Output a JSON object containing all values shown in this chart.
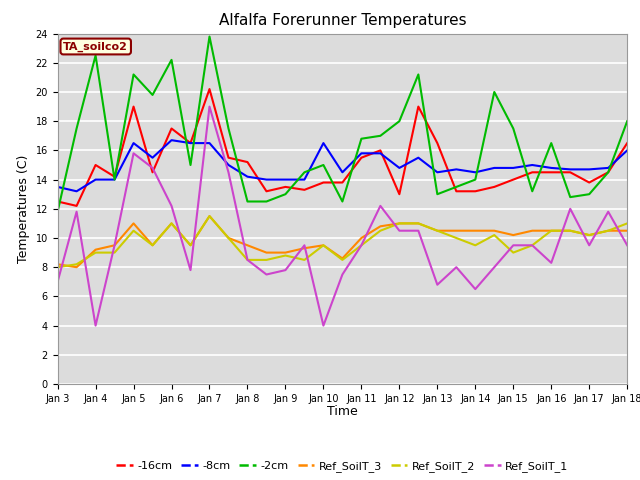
{
  "title": "Alfalfa Forerunner Temperatures",
  "xlabel": "Time",
  "ylabel": "Temperatures (C)",
  "annotation": "TA_soilco2",
  "xlim": [
    0,
    15
  ],
  "ylim": [
    0,
    24
  ],
  "yticks": [
    0,
    2,
    4,
    6,
    8,
    10,
    12,
    14,
    16,
    18,
    20,
    22,
    24
  ],
  "xtick_labels": [
    "Jan 3",
    "Jan 4",
    "Jan 5",
    "Jan 6",
    "Jan 7",
    "Jan 8",
    "Jan 9",
    "Jan 10",
    "Jan 11",
    "Jan 12",
    "Jan 13",
    "Jan 14",
    "Jan 15",
    "Jan 16",
    "Jan 17",
    "Jan 18"
  ],
  "plot_bg_color": "#dcdcdc",
  "series": {
    "-16cm": {
      "color": "#ff0000",
      "lw": 1.5,
      "x": [
        0,
        0.5,
        1.0,
        1.5,
        2.0,
        2.5,
        3.0,
        3.5,
        4.0,
        4.5,
        5.0,
        5.5,
        6.0,
        6.5,
        7.0,
        7.5,
        8.0,
        8.5,
        9.0,
        9.5,
        10.0,
        10.5,
        11.0,
        11.5,
        12.0,
        12.5,
        13.0,
        13.5,
        14.0,
        14.5,
        15.0
      ],
      "y": [
        12.5,
        12.2,
        15.0,
        14.2,
        19.0,
        14.5,
        17.5,
        16.5,
        20.2,
        15.5,
        15.2,
        13.2,
        13.5,
        13.3,
        13.8,
        13.8,
        15.5,
        16.0,
        13.0,
        19.0,
        16.5,
        13.2,
        13.2,
        13.5,
        14.0,
        14.5,
        14.5,
        14.5,
        13.8,
        14.5,
        16.5
      ]
    },
    "-8cm": {
      "color": "#0000ff",
      "lw": 1.5,
      "x": [
        0,
        0.5,
        1.0,
        1.5,
        2.0,
        2.5,
        3.0,
        3.5,
        4.0,
        4.5,
        5.0,
        5.5,
        6.0,
        6.5,
        7.0,
        7.5,
        8.0,
        8.5,
        9.0,
        9.5,
        10.0,
        10.5,
        11.0,
        11.5,
        12.0,
        12.5,
        13.0,
        13.5,
        14.0,
        14.5,
        15.0
      ],
      "y": [
        13.5,
        13.2,
        14.0,
        14.0,
        16.5,
        15.5,
        16.7,
        16.5,
        16.5,
        15.0,
        14.2,
        14.0,
        14.0,
        14.0,
        16.5,
        14.5,
        15.8,
        15.8,
        14.8,
        15.5,
        14.5,
        14.7,
        14.5,
        14.8,
        14.8,
        15.0,
        14.8,
        14.7,
        14.7,
        14.8,
        16.0
      ]
    },
    "-2cm": {
      "color": "#00bb00",
      "lw": 1.5,
      "x": [
        0,
        0.5,
        1.0,
        1.5,
        2.0,
        2.5,
        3.0,
        3.5,
        4.0,
        4.5,
        5.0,
        5.5,
        6.0,
        6.5,
        7.0,
        7.5,
        8.0,
        8.5,
        9.0,
        9.5,
        10.0,
        10.5,
        11.0,
        11.5,
        12.0,
        12.5,
        13.0,
        13.5,
        14.0,
        14.5,
        15.0
      ],
      "y": [
        11.8,
        17.5,
        22.5,
        14.0,
        21.2,
        19.8,
        22.2,
        15.0,
        23.8,
        17.5,
        12.5,
        12.5,
        13.0,
        14.5,
        15.0,
        12.5,
        16.8,
        17.0,
        18.0,
        21.2,
        13.0,
        13.5,
        14.0,
        20.0,
        17.5,
        13.2,
        16.5,
        12.8,
        13.0,
        14.5,
        18.0
      ]
    },
    "Ref_SoilT_3": {
      "color": "#ff8800",
      "lw": 1.5,
      "x": [
        0,
        0.5,
        1.0,
        1.5,
        2.0,
        2.5,
        3.0,
        3.5,
        4.0,
        4.5,
        5.0,
        5.5,
        6.0,
        6.5,
        7.0,
        7.5,
        8.0,
        8.5,
        9.0,
        9.5,
        10.0,
        10.5,
        11.0,
        11.5,
        12.0,
        12.5,
        13.0,
        13.5,
        14.0,
        14.5,
        15.0
      ],
      "y": [
        8.2,
        8.0,
        9.2,
        9.5,
        11.0,
        9.5,
        11.0,
        9.5,
        11.5,
        10.0,
        9.5,
        9.0,
        9.0,
        9.3,
        9.5,
        8.6,
        10.0,
        10.8,
        11.0,
        11.0,
        10.5,
        10.5,
        10.5,
        10.5,
        10.2,
        10.5,
        10.5,
        10.5,
        10.2,
        10.5,
        10.5
      ]
    },
    "Ref_SoilT_2": {
      "color": "#cccc00",
      "lw": 1.5,
      "x": [
        0,
        0.5,
        1.0,
        1.5,
        2.0,
        2.5,
        3.0,
        3.5,
        4.0,
        4.5,
        5.0,
        5.5,
        6.0,
        6.5,
        7.0,
        7.5,
        8.0,
        8.5,
        9.0,
        9.5,
        10.0,
        10.5,
        11.0,
        11.5,
        12.0,
        12.5,
        13.0,
        13.5,
        14.0,
        14.5,
        15.0
      ],
      "y": [
        8.0,
        8.2,
        9.0,
        9.0,
        10.5,
        9.5,
        11.0,
        9.5,
        11.5,
        10.0,
        8.5,
        8.5,
        8.8,
        8.5,
        9.5,
        8.5,
        9.5,
        10.5,
        11.0,
        11.0,
        10.5,
        10.0,
        9.5,
        10.2,
        9.0,
        9.5,
        10.5,
        10.5,
        10.2,
        10.5,
        11.0
      ]
    },
    "Ref_SoilT_1": {
      "color": "#cc44cc",
      "lw": 1.5,
      "x": [
        0,
        0.5,
        1.0,
        1.5,
        2.0,
        2.5,
        3.0,
        3.5,
        4.0,
        4.5,
        5.0,
        5.5,
        6.0,
        6.5,
        7.0,
        7.5,
        8.0,
        8.5,
        9.0,
        9.5,
        10.0,
        10.5,
        11.0,
        11.5,
        12.0,
        12.5,
        13.0,
        13.5,
        14.0,
        14.5,
        15.0
      ],
      "y": [
        7.0,
        11.8,
        4.0,
        9.5,
        15.8,
        14.8,
        12.2,
        7.8,
        19.0,
        14.5,
        8.5,
        7.5,
        7.8,
        9.5,
        4.0,
        7.5,
        9.5,
        12.2,
        10.5,
        10.5,
        6.8,
        8.0,
        6.5,
        8.0,
        9.5,
        9.5,
        8.3,
        12.0,
        9.5,
        11.8,
        9.5
      ]
    }
  },
  "legend_order": [
    "-16cm",
    "-8cm",
    "-2cm",
    "Ref_SoilT_3",
    "Ref_SoilT_2",
    "Ref_SoilT_1"
  ],
  "title_fontsize": 11,
  "tick_fontsize": 7,
  "axis_label_fontsize": 9
}
